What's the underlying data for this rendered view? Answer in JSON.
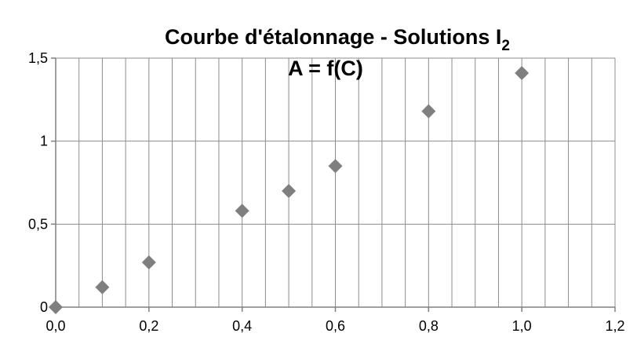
{
  "chart_data": {
    "type": "scatter",
    "title": "Courbe d'étalonnage - Solutions I",
    "title_subscript": "2",
    "subtitle": "A = f(C)",
    "xlabel": "",
    "ylabel": "",
    "xlim": [
      0,
      1.2
    ],
    "ylim": [
      0,
      1.5
    ],
    "x_ticks": [
      "0,0",
      "0,2",
      "0,4",
      "0,6",
      "0,8",
      "1,0",
      "1,2"
    ],
    "y_ticks": [
      "0",
      "0,5",
      "1",
      "1,5"
    ],
    "x_tick_values": [
      0,
      0.2,
      0.4,
      0.6,
      0.8,
      1.0,
      1.2
    ],
    "y_tick_values": [
      0,
      0.5,
      1,
      1.5
    ],
    "x_minor_step": 0.05,
    "grid": true,
    "legend": "none",
    "marker": "diamond",
    "marker_color": "#7f7f7f",
    "series": [
      {
        "x": [
          0,
          0.1,
          0.2,
          0.4,
          0.5,
          0.6,
          0.8,
          1.0
        ],
        "y": [
          0,
          0.12,
          0.27,
          0.58,
          0.7,
          0.85,
          1.18,
          1.41
        ]
      }
    ]
  }
}
